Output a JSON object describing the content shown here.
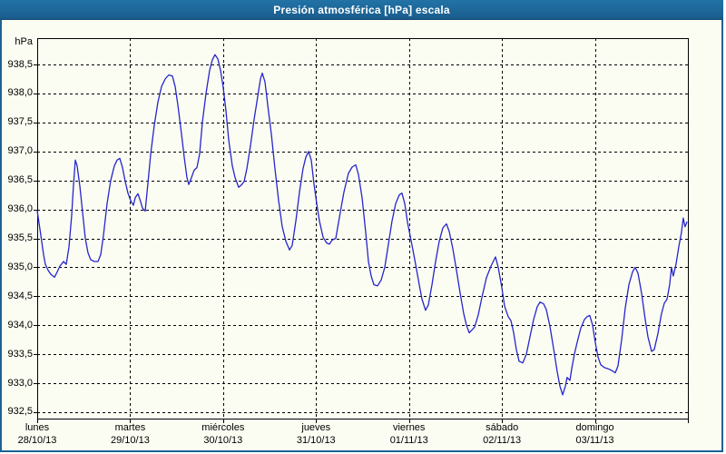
{
  "window": {
    "title": "Presión atmosférica [hPa] escala"
  },
  "colors": {
    "titlebar": "#1d6295",
    "frame": "#1d6295",
    "panel_bg": "#fcfdf2",
    "plot_border": "#000000",
    "grid": "#000000",
    "line": "#2525cd",
    "label_text": "#000000",
    "title_text": "#ffffff"
  },
  "chart_data": {
    "type": "line",
    "title": "Presión atmosférica [hPa] escala",
    "ylabel": "hPa",
    "xlabel": "",
    "decimal_separator": ",",
    "grid": true,
    "legend": "none",
    "ylim": [
      932.39,
      938.955
    ],
    "xlim_days": [
      0,
      7
    ],
    "y_tick_values": [
      938.5,
      938.0,
      937.5,
      937.0,
      936.5,
      936.0,
      935.5,
      935.0,
      934.5,
      934.0,
      933.5,
      933.0,
      932.5
    ],
    "y_tick_labels": [
      "938,5",
      "938,0",
      "937,5",
      "937,0",
      "936,5",
      "936,0",
      "935,5",
      "935,0",
      "934,5",
      "934,0",
      "933,5",
      "933,0",
      "932,5"
    ],
    "days": [
      {
        "name": "lunes",
        "date": "28/10/13"
      },
      {
        "name": "martes",
        "date": "29/10/13"
      },
      {
        "name": "miércoles",
        "date": "30/10/13"
      },
      {
        "name": "jueves",
        "date": "31/10/13"
      },
      {
        "name": "viernes",
        "date": "01/11/13"
      },
      {
        "name": "sábado",
        "date": "02/11/13"
      },
      {
        "name": "domingo",
        "date": "03/11/13"
      }
    ],
    "series": [
      {
        "name": "Presión atmosférica",
        "unit": "hPa",
        "points": [
          [
            0.0,
            935.98
          ],
          [
            0.039,
            935.55
          ],
          [
            0.068,
            935.22
          ],
          [
            0.088,
            935.05
          ],
          [
            0.117,
            934.95
          ],
          [
            0.146,
            934.88
          ],
          [
            0.186,
            934.83
          ],
          [
            0.215,
            934.92
          ],
          [
            0.244,
            935.02
          ],
          [
            0.283,
            935.1
          ],
          [
            0.312,
            935.05
          ],
          [
            0.342,
            935.35
          ],
          [
            0.371,
            935.9
          ],
          [
            0.39,
            936.4
          ],
          [
            0.41,
            936.85
          ],
          [
            0.43,
            936.75
          ],
          [
            0.459,
            936.4
          ],
          [
            0.488,
            935.95
          ],
          [
            0.517,
            935.5
          ],
          [
            0.547,
            935.25
          ],
          [
            0.576,
            935.13
          ],
          [
            0.615,
            935.1
          ],
          [
            0.654,
            935.1
          ],
          [
            0.683,
            935.22
          ],
          [
            0.713,
            935.55
          ],
          [
            0.752,
            936.1
          ],
          [
            0.791,
            936.5
          ],
          [
            0.83,
            936.75
          ],
          [
            0.859,
            936.85
          ],
          [
            0.888,
            936.88
          ],
          [
            0.918,
            936.72
          ],
          [
            0.947,
            936.48
          ],
          [
            0.976,
            936.28
          ],
          [
            1.006,
            936.15
          ],
          [
            1.035,
            936.07
          ],
          [
            1.054,
            936.2
          ],
          [
            1.084,
            936.27
          ],
          [
            1.103,
            936.18
          ],
          [
            1.133,
            936.02
          ],
          [
            1.162,
            935.97
          ],
          [
            1.191,
            936.45
          ],
          [
            1.22,
            936.95
          ],
          [
            1.259,
            937.45
          ],
          [
            1.298,
            937.85
          ],
          [
            1.338,
            938.12
          ],
          [
            1.377,
            938.25
          ],
          [
            1.416,
            938.32
          ],
          [
            1.455,
            938.3
          ],
          [
            1.484,
            938.12
          ],
          [
            1.513,
            937.8
          ],
          [
            1.552,
            937.3
          ],
          [
            1.582,
            936.9
          ],
          [
            1.611,
            936.55
          ],
          [
            1.63,
            936.43
          ],
          [
            1.66,
            936.55
          ],
          [
            1.689,
            936.68
          ],
          [
            1.718,
            936.72
          ],
          [
            1.747,
            936.95
          ],
          [
            1.777,
            937.5
          ],
          [
            1.816,
            938.0
          ],
          [
            1.855,
            938.4
          ],
          [
            1.884,
            938.58
          ],
          [
            1.913,
            938.67
          ],
          [
            1.943,
            938.6
          ],
          [
            1.972,
            938.4
          ],
          [
            2.001,
            938.1
          ],
          [
            2.031,
            937.7
          ],
          [
            2.06,
            937.2
          ],
          [
            2.099,
            936.75
          ],
          [
            2.128,
            936.55
          ],
          [
            2.167,
            936.38
          ],
          [
            2.196,
            936.42
          ],
          [
            2.226,
            936.48
          ],
          [
            2.255,
            936.7
          ],
          [
            2.294,
            937.1
          ],
          [
            2.333,
            937.55
          ],
          [
            2.372,
            937.95
          ],
          [
            2.402,
            938.25
          ],
          [
            2.421,
            938.35
          ],
          [
            2.45,
            938.2
          ],
          [
            2.48,
            937.8
          ],
          [
            2.519,
            937.3
          ],
          [
            2.558,
            936.7
          ],
          [
            2.597,
            936.15
          ],
          [
            2.636,
            935.7
          ],
          [
            2.675,
            935.45
          ],
          [
            2.714,
            935.3
          ],
          [
            2.743,
            935.38
          ],
          [
            2.782,
            935.8
          ],
          [
            2.821,
            936.3
          ],
          [
            2.86,
            936.7
          ],
          [
            2.89,
            936.9
          ],
          [
            2.919,
            937.0
          ],
          [
            2.948,
            936.85
          ],
          [
            2.977,
            936.45
          ],
          [
            3.007,
            936.1
          ],
          [
            3.036,
            935.8
          ],
          [
            3.075,
            935.52
          ],
          [
            3.114,
            935.42
          ],
          [
            3.144,
            935.4
          ],
          [
            3.173,
            935.47
          ],
          [
            3.212,
            935.5
          ],
          [
            3.261,
            935.95
          ],
          [
            3.3,
            936.3
          ],
          [
            3.348,
            936.62
          ],
          [
            3.388,
            936.73
          ],
          [
            3.427,
            936.77
          ],
          [
            3.456,
            936.6
          ],
          [
            3.495,
            936.2
          ],
          [
            3.534,
            935.6
          ],
          [
            3.563,
            935.1
          ],
          [
            3.593,
            934.85
          ],
          [
            3.622,
            934.7
          ],
          [
            3.661,
            934.68
          ],
          [
            3.7,
            934.78
          ],
          [
            3.739,
            935.0
          ],
          [
            3.778,
            935.4
          ],
          [
            3.817,
            935.8
          ],
          [
            3.856,
            936.1
          ],
          [
            3.895,
            936.25
          ],
          [
            3.924,
            936.28
          ],
          [
            3.954,
            936.1
          ],
          [
            3.983,
            935.78
          ],
          [
            4.012,
            935.55
          ],
          [
            4.042,
            935.3
          ],
          [
            4.071,
            935.05
          ],
          [
            4.11,
            934.7
          ],
          [
            4.139,
            934.45
          ],
          [
            4.178,
            934.26
          ],
          [
            4.208,
            934.35
          ],
          [
            4.247,
            934.7
          ],
          [
            4.286,
            935.1
          ],
          [
            4.325,
            935.45
          ],
          [
            4.364,
            935.68
          ],
          [
            4.403,
            935.75
          ],
          [
            4.432,
            935.62
          ],
          [
            4.471,
            935.32
          ],
          [
            4.51,
            934.95
          ],
          [
            4.55,
            934.55
          ],
          [
            4.589,
            934.2
          ],
          [
            4.618,
            934.0
          ],
          [
            4.647,
            933.87
          ],
          [
            4.676,
            933.92
          ],
          [
            4.706,
            933.97
          ],
          [
            4.745,
            934.18
          ],
          [
            4.784,
            934.48
          ],
          [
            4.833,
            934.82
          ],
          [
            4.881,
            935.02
          ],
          [
            4.93,
            935.18
          ],
          [
            4.96,
            935.0
          ],
          [
            4.999,
            934.65
          ],
          [
            5.028,
            934.33
          ],
          [
            5.067,
            934.15
          ],
          [
            5.096,
            934.08
          ],
          [
            5.125,
            933.88
          ],
          [
            5.155,
            933.58
          ],
          [
            5.184,
            933.38
          ],
          [
            5.223,
            933.35
          ],
          [
            5.262,
            933.5
          ],
          [
            5.301,
            933.8
          ],
          [
            5.34,
            934.1
          ],
          [
            5.379,
            934.32
          ],
          [
            5.409,
            934.4
          ],
          [
            5.448,
            934.37
          ],
          [
            5.477,
            934.27
          ],
          [
            5.516,
            933.98
          ],
          [
            5.555,
            933.6
          ],
          [
            5.594,
            933.2
          ],
          [
            5.623,
            932.95
          ],
          [
            5.653,
            932.8
          ],
          [
            5.682,
            932.95
          ],
          [
            5.701,
            933.1
          ],
          [
            5.731,
            933.05
          ],
          [
            5.75,
            933.25
          ],
          [
            5.779,
            933.5
          ],
          [
            5.808,
            933.7
          ],
          [
            5.848,
            933.95
          ],
          [
            5.887,
            934.1
          ],
          [
            5.916,
            934.15
          ],
          [
            5.945,
            934.17
          ],
          [
            5.975,
            934.0
          ],
          [
            6.004,
            933.7
          ],
          [
            6.033,
            933.45
          ],
          [
            6.062,
            933.32
          ],
          [
            6.101,
            933.27
          ],
          [
            6.141,
            933.25
          ],
          [
            6.18,
            933.22
          ],
          [
            6.219,
            933.18
          ],
          [
            6.248,
            933.3
          ],
          [
            6.287,
            933.75
          ],
          [
            6.326,
            934.3
          ],
          [
            6.365,
            934.7
          ],
          [
            6.404,
            934.92
          ],
          [
            6.433,
            935.0
          ],
          [
            6.463,
            934.9
          ],
          [
            6.502,
            934.55
          ],
          [
            6.541,
            934.1
          ],
          [
            6.57,
            933.8
          ],
          [
            6.609,
            933.55
          ],
          [
            6.638,
            933.58
          ],
          [
            6.677,
            933.85
          ],
          [
            6.716,
            934.2
          ],
          [
            6.746,
            934.38
          ],
          [
            6.775,
            934.45
          ],
          [
            6.804,
            934.7
          ],
          [
            6.823,
            935.0
          ],
          [
            6.843,
            934.85
          ],
          [
            6.872,
            935.05
          ],
          [
            6.901,
            935.35
          ],
          [
            6.931,
            935.6
          ],
          [
            6.95,
            935.85
          ],
          [
            6.97,
            935.7
          ],
          [
            6.989,
            935.78
          ]
        ]
      }
    ]
  }
}
